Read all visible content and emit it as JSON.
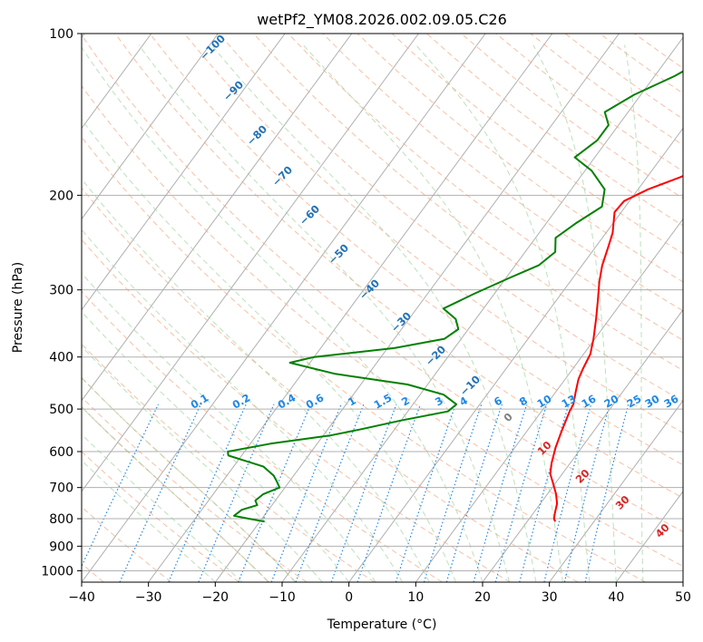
{
  "chart_data": {
    "type": "line",
    "title": "wetPf2_YM08.2026.002.09.05.C26",
    "xlabel": "Temperature (°C)",
    "ylabel": "Pressure (hPa)",
    "xlim": [
      -40,
      50
    ],
    "ylim": [
      1050,
      100
    ],
    "x_ticks": [
      -40,
      -30,
      -20,
      -10,
      0,
      10,
      20,
      30,
      40,
      50
    ],
    "x_tick_labels": [
      "−40",
      "−30",
      "−20",
      "−10",
      "0",
      "10",
      "20",
      "30",
      "40",
      "50"
    ],
    "y_ticks": [
      100,
      200,
      300,
      400,
      500,
      600,
      700,
      800,
      900,
      1000
    ],
    "y_tick_labels": [
      "100",
      "200",
      "300",
      "400",
      "500",
      "600",
      "700",
      "800",
      "900",
      "1000"
    ],
    "grid": true,
    "series": [
      {
        "name": "Temperature",
        "color": "#ff0000",
        "points": [
          [
            24.2,
            810
          ],
          [
            23.7,
            800
          ],
          [
            23.2,
            780
          ],
          [
            22.5,
            750
          ],
          [
            21.3,
            720
          ],
          [
            19.8,
            690
          ],
          [
            18.2,
            660
          ],
          [
            17.2,
            630
          ],
          [
            16.1,
            590
          ],
          [
            15.2,
            550
          ],
          [
            14.2,
            505
          ],
          [
            14.0,
            490
          ],
          [
            13.0,
            465
          ],
          [
            12.0,
            440
          ],
          [
            11.5,
            420
          ],
          [
            11.0,
            395
          ],
          [
            9.8,
            370
          ],
          [
            8.0,
            340
          ],
          [
            6.3,
            315
          ],
          [
            4.4,
            290
          ],
          [
            3.0,
            270
          ],
          [
            1.9,
            250
          ],
          [
            1.0,
            235
          ],
          [
            -1.0,
            215
          ],
          [
            -0.8,
            205
          ],
          [
            1.5,
            195
          ],
          [
            5.0,
            185
          ],
          [
            8.0,
            175
          ],
          [
            10.0,
            160
          ],
          [
            11.5,
            148
          ],
          [
            12.0,
            135
          ],
          [
            11.7,
            125
          ],
          [
            10.5,
            115
          ],
          [
            10.3,
            108
          ],
          [
            11.0,
            104
          ],
          [
            12.0,
            100
          ]
        ]
      },
      {
        "name": "Dewpoint",
        "color": "#008000",
        "points": [
          [
            -19.3,
            810
          ],
          [
            -22.0,
            800
          ],
          [
            -24.5,
            790
          ],
          [
            -24.0,
            770
          ],
          [
            -22.2,
            755
          ],
          [
            -23.0,
            740
          ],
          [
            -22.5,
            720
          ],
          [
            -20.8,
            700
          ],
          [
            -22.0,
            680
          ],
          [
            -23.0,
            665
          ],
          [
            -25.5,
            640
          ],
          [
            -32.0,
            610
          ],
          [
            -32.5,
            600
          ],
          [
            -27.0,
            580
          ],
          [
            -19.0,
            560
          ],
          [
            -15.0,
            545
          ],
          [
            -10.0,
            525
          ],
          [
            -4.0,
            505
          ],
          [
            -3.5,
            490
          ],
          [
            -6.5,
            470
          ],
          [
            -13.0,
            450
          ],
          [
            -25.0,
            430
          ],
          [
            -33.0,
            410
          ],
          [
            -30.0,
            400
          ],
          [
            -19.0,
            385
          ],
          [
            -12.5,
            370
          ],
          [
            -11.5,
            355
          ],
          [
            -13.0,
            340
          ],
          [
            -16.0,
            325
          ],
          [
            -13.0,
            305
          ],
          [
            -9.5,
            285
          ],
          [
            -6.5,
            270
          ],
          [
            -5.5,
            255
          ],
          [
            -7.0,
            240
          ],
          [
            -5.5,
            225
          ],
          [
            -3.5,
            210
          ],
          [
            -5.0,
            195
          ],
          [
            -9.0,
            180
          ],
          [
            -13.0,
            170
          ],
          [
            -11.5,
            158
          ],
          [
            -11.5,
            148
          ],
          [
            -13.5,
            140
          ],
          [
            -11.0,
            130
          ],
          [
            -7.0,
            120
          ],
          [
            -4.5,
            112
          ],
          [
            -2.5,
            104
          ],
          [
            -2.0,
            100
          ]
        ]
      }
    ],
    "dry_adiabat_labels": [
      "−100",
      "−90",
      "−80",
      "−70",
      "−60",
      "−50",
      "−40",
      "−30",
      "−20",
      "−10"
    ],
    "mixing_ratio_labels": [
      "0.1",
      "0.2",
      "0.4",
      "0.6",
      "1",
      "1.5",
      "2",
      "3",
      "4",
      "6",
      "8",
      "10",
      "13",
      "16",
      "20",
      "25",
      "30",
      "36"
    ],
    "moist_adiabat_labels": [
      "0",
      "10",
      "20",
      "30",
      "40"
    ]
  }
}
